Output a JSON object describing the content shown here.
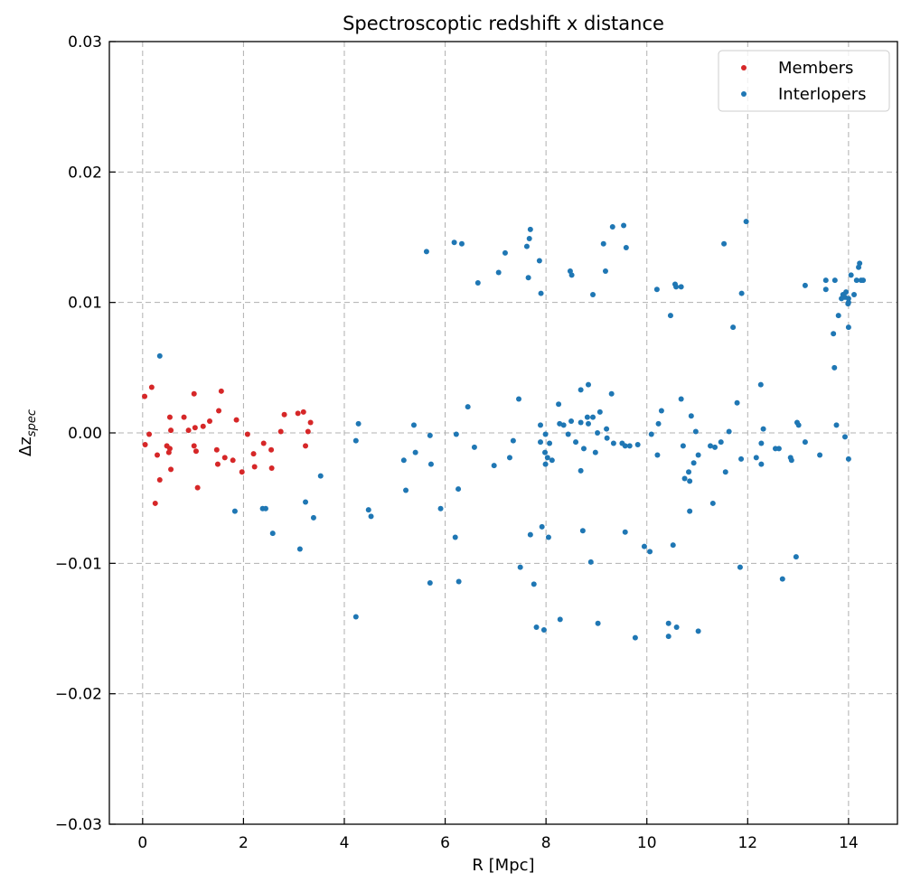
{
  "chart_data": {
    "type": "scatter",
    "title": "Spectroscoptic redshift x distance",
    "xlabel": "R [Mpc]",
    "ylabel_base": "Δz",
    "ylabel_sub": "spec",
    "xlim": [
      -0.66,
      14.97
    ],
    "ylim": [
      -0.03,
      0.03
    ],
    "xticks": [
      0,
      2,
      4,
      6,
      8,
      10,
      12,
      14
    ],
    "xtick_labels": [
      "0",
      "2",
      "4",
      "6",
      "8",
      "10",
      "12",
      "14"
    ],
    "yticks": [
      -0.03,
      -0.02,
      -0.01,
      0.0,
      0.01,
      0.02,
      0.03
    ],
    "ytick_labels": [
      "−0.03",
      "−0.02",
      "−0.01",
      "0.00",
      "0.01",
      "0.02",
      "0.03"
    ],
    "grid": true,
    "legend_position": "top-right",
    "series": [
      {
        "name": "Members",
        "color": "#d62728",
        "points": [
          [
            0.04,
            0.0028
          ],
          [
            0.05,
            -0.0009
          ],
          [
            0.13,
            -0.0001
          ],
          [
            0.18,
            0.0035
          ],
          [
            0.25,
            -0.0054
          ],
          [
            0.29,
            -0.0017
          ],
          [
            0.34,
            -0.0036
          ],
          [
            0.54,
            0.0012
          ],
          [
            0.48,
            -0.001
          ],
          [
            0.54,
            -0.0012
          ],
          [
            0.52,
            -0.0015
          ],
          [
            0.56,
            0.0002
          ],
          [
            0.56,
            -0.0028
          ],
          [
            0.82,
            0.0012
          ],
          [
            0.91,
            0.0002
          ],
          [
            1.02,
            0.003
          ],
          [
            1.04,
            0.0004
          ],
          [
            1.02,
            -0.001
          ],
          [
            1.06,
            -0.0014
          ],
          [
            1.09,
            -0.0042
          ],
          [
            1.2,
            0.0005
          ],
          [
            1.33,
            0.0009
          ],
          [
            1.47,
            -0.0013
          ],
          [
            1.49,
            -0.0024
          ],
          [
            1.51,
            0.0017
          ],
          [
            1.56,
            0.0032
          ],
          [
            1.63,
            -0.0019
          ],
          [
            1.79,
            -0.0021
          ],
          [
            1.86,
            0.001
          ],
          [
            1.97,
            -0.003
          ],
          [
            2.08,
            -0.0001
          ],
          [
            2.2,
            -0.0016
          ],
          [
            2.22,
            -0.0026
          ],
          [
            2.4,
            -0.0008
          ],
          [
            2.55,
            -0.0013
          ],
          [
            2.56,
            -0.0027
          ],
          [
            2.74,
            0.0001
          ],
          [
            2.81,
            0.0014
          ],
          [
            3.08,
            0.0015
          ],
          [
            3.19,
            0.0016
          ],
          [
            3.23,
            -0.001
          ],
          [
            3.28,
            0.0001
          ],
          [
            3.33,
            0.0008
          ]
        ]
      },
      {
        "name": "Interlopers",
        "color": "#1f77b4",
        "points": [
          [
            0.34,
            0.0059
          ],
          [
            1.83,
            -0.006
          ],
          [
            2.38,
            -0.0058
          ],
          [
            2.44,
            -0.0058
          ],
          [
            2.58,
            -0.0077
          ],
          [
            3.12,
            -0.0089
          ],
          [
            3.23,
            -0.0053
          ],
          [
            3.39,
            -0.0065
          ],
          [
            3.53,
            -0.0033
          ],
          [
            4.23,
            -0.0006
          ],
          [
            4.28,
            0.0007
          ],
          [
            4.23,
            -0.0141
          ],
          [
            4.48,
            -0.0059
          ],
          [
            4.53,
            -0.0064
          ],
          [
            5.18,
            -0.0021
          ],
          [
            5.22,
            -0.0044
          ],
          [
            5.38,
            0.0006
          ],
          [
            5.41,
            -0.0015
          ],
          [
            5.63,
            0.0139
          ],
          [
            5.7,
            -0.0002
          ],
          [
            5.72,
            -0.0024
          ],
          [
            5.7,
            -0.0115
          ],
          [
            5.91,
            -0.0058
          ],
          [
            6.18,
            0.0146
          ],
          [
            6.22,
            -0.0001
          ],
          [
            6.2,
            -0.008
          ],
          [
            6.26,
            -0.0043
          ],
          [
            6.27,
            -0.0114
          ],
          [
            6.33,
            0.0145
          ],
          [
            6.45,
            0.002
          ],
          [
            6.58,
            -0.0011
          ],
          [
            6.65,
            0.0115
          ],
          [
            6.97,
            -0.0025
          ],
          [
            7.06,
            0.0123
          ],
          [
            7.19,
            0.0138
          ],
          [
            7.28,
            -0.0019
          ],
          [
            7.35,
            -0.0006
          ],
          [
            7.46,
            0.0026
          ],
          [
            7.49,
            -0.0103
          ],
          [
            7.62,
            0.0143
          ],
          [
            7.65,
            0.0119
          ],
          [
            7.67,
            0.0149
          ],
          [
            7.69,
            0.0156
          ],
          [
            7.69,
            -0.0078
          ],
          [
            7.76,
            -0.0116
          ],
          [
            7.81,
            -0.0149
          ],
          [
            7.87,
            0.0132
          ],
          [
            7.89,
            0.0006
          ],
          [
            7.89,
            -0.0007
          ],
          [
            7.9,
            0.0107
          ],
          [
            7.92,
            -0.0072
          ],
          [
            7.96,
            -0.0151
          ],
          [
            7.98,
            -0.0015
          ],
          [
            7.99,
            -0.0001
          ],
          [
            7.99,
            -0.0024
          ],
          [
            8.03,
            -0.0019
          ],
          [
            8.05,
            -0.008
          ],
          [
            8.07,
            -0.0008
          ],
          [
            8.12,
            -0.0021
          ],
          [
            8.25,
            0.0022
          ],
          [
            8.27,
            0.0007
          ],
          [
            8.28,
            -0.0143
          ],
          [
            8.35,
            0.0006
          ],
          [
            8.44,
            -0.0001
          ],
          [
            8.48,
            0.0124
          ],
          [
            8.5,
            0.0009
          ],
          [
            8.51,
            0.0121
          ],
          [
            8.59,
            -0.0007
          ],
          [
            8.69,
            0.0008
          ],
          [
            8.69,
            0.0033
          ],
          [
            8.69,
            -0.0029
          ],
          [
            8.73,
            -0.0075
          ],
          [
            8.75,
            -0.0012
          ],
          [
            8.82,
            0.0012
          ],
          [
            8.84,
            0.0037
          ],
          [
            8.84,
            0.0007
          ],
          [
            8.89,
            -0.0099
          ],
          [
            8.93,
            0.0012
          ],
          [
            8.93,
            0.0106
          ],
          [
            8.98,
            -0.0015
          ],
          [
            9.02,
            0.0
          ],
          [
            9.03,
            -0.0146
          ],
          [
            9.07,
            0.0016
          ],
          [
            9.14,
            0.0145
          ],
          [
            9.18,
            0.0124
          ],
          [
            9.2,
            0.0003
          ],
          [
            9.21,
            -0.0004
          ],
          [
            9.3,
            0.003
          ],
          [
            9.32,
            0.0158
          ],
          [
            9.34,
            -0.0008
          ],
          [
            9.51,
            -0.0008
          ],
          [
            9.54,
            0.0159
          ],
          [
            9.57,
            -0.001
          ],
          [
            9.57,
            -0.0076
          ],
          [
            9.59,
            0.0142
          ],
          [
            9.66,
            -0.001
          ],
          [
            9.77,
            -0.0157
          ],
          [
            9.82,
            -0.0009
          ],
          [
            9.95,
            -0.0087
          ],
          [
            10.06,
            -0.0091
          ],
          [
            10.09,
            -0.0001
          ],
          [
            10.2,
            0.011
          ],
          [
            10.21,
            -0.0017
          ],
          [
            10.23,
            0.0007
          ],
          [
            10.29,
            0.0017
          ],
          [
            10.43,
            -0.0146
          ],
          [
            10.43,
            -0.0156
          ],
          [
            10.47,
            0.009
          ],
          [
            10.52,
            -0.0086
          ],
          [
            10.56,
            0.0114
          ],
          [
            10.58,
            0.0112
          ],
          [
            10.59,
            -0.0149
          ],
          [
            10.68,
            0.0112
          ],
          [
            10.68,
            0.0026
          ],
          [
            10.72,
            -0.001
          ],
          [
            10.75,
            -0.0035
          ],
          [
            10.83,
            -0.003
          ],
          [
            10.85,
            -0.0037
          ],
          [
            10.85,
            -0.006
          ],
          [
            10.88,
            0.0013
          ],
          [
            10.93,
            -0.0023
          ],
          [
            10.97,
            0.0001
          ],
          [
            11.02,
            -0.0152
          ],
          [
            11.02,
            -0.0017
          ],
          [
            11.26,
            -0.001
          ],
          [
            11.31,
            -0.0054
          ],
          [
            11.35,
            -0.0011
          ],
          [
            11.47,
            -0.0007
          ],
          [
            11.53,
            0.0145
          ],
          [
            11.56,
            -0.003
          ],
          [
            11.63,
            0.0001
          ],
          [
            11.71,
            0.0081
          ],
          [
            11.79,
            0.0023
          ],
          [
            11.85,
            -0.0103
          ],
          [
            11.87,
            -0.002
          ],
          [
            11.88,
            0.0107
          ],
          [
            11.97,
            0.0162
          ],
          [
            12.17,
            -0.0019
          ],
          [
            12.26,
            0.0037
          ],
          [
            12.27,
            -0.0008
          ],
          [
            12.27,
            -0.0024
          ],
          [
            12.31,
            0.0003
          ],
          [
            12.55,
            -0.0012
          ],
          [
            12.62,
            -0.0012
          ],
          [
            12.69,
            -0.0112
          ],
          [
            12.85,
            -0.0019
          ],
          [
            12.87,
            -0.0021
          ],
          [
            12.96,
            -0.0095
          ],
          [
            12.98,
            0.0008
          ],
          [
            13.01,
            0.0006
          ],
          [
            13.14,
            -0.0007
          ],
          [
            13.14,
            0.0113
          ],
          [
            13.43,
            -0.0017
          ],
          [
            13.55,
            0.011
          ],
          [
            13.55,
            0.0117
          ],
          [
            13.7,
            0.0076
          ],
          [
            13.72,
            0.005
          ],
          [
            13.73,
            0.0117
          ],
          [
            13.76,
            0.0006
          ],
          [
            13.8,
            0.009
          ],
          [
            13.86,
            0.0103
          ],
          [
            13.89,
            0.0106
          ],
          [
            13.93,
            -0.0003
          ],
          [
            13.93,
            0.0104
          ],
          [
            13.95,
            0.0108
          ],
          [
            13.99,
            0.0099
          ],
          [
            14.0,
            0.01
          ],
          [
            14.0,
            0.0081
          ],
          [
            14.0,
            -0.002
          ],
          [
            14.0,
            0.0103
          ],
          [
            14.05,
            0.0121
          ],
          [
            14.11,
            0.0106
          ],
          [
            14.16,
            0.0117
          ],
          [
            14.2,
            0.0127
          ],
          [
            14.22,
            0.013
          ],
          [
            14.25,
            0.0117
          ],
          [
            14.29,
            0.0117
          ]
        ]
      }
    ]
  }
}
